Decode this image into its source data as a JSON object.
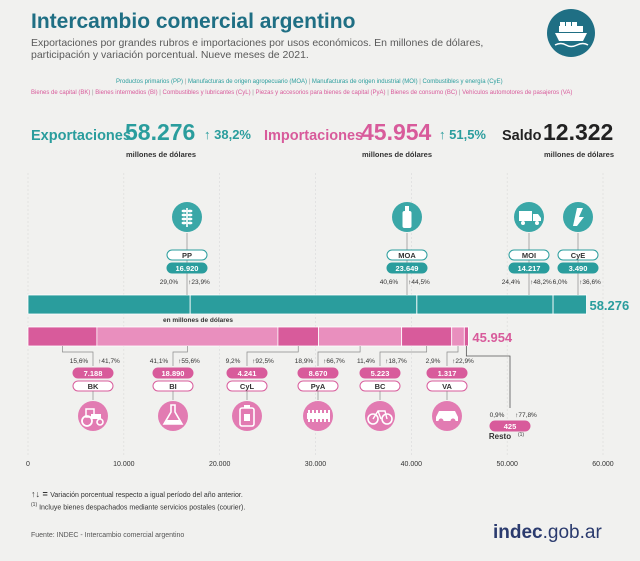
{
  "header": {
    "title": "Intercambio comercial argentino",
    "subtitle": "Exportaciones por grandes rubros e importaciones por usos económicos. En millones de dólares, participación y variación porcentual. Nueve meses de 2021."
  },
  "legend": {
    "exports": [
      "Productos primarios (PP)",
      "Manufacturas de origen agropecuario (MOA)",
      "Manufacturas de origen industrial (MOI)",
      "Combustibles y energía (CyE)"
    ],
    "imports": [
      "Bienes de capital (BK)",
      "Bienes intermedios (BI)",
      "Combustibles y lubricantes (CyL)",
      "Piezas y accesorios para bienes de capital (PyA)",
      "Bienes de consumo (BC)",
      "Vehículos automotores de pasajeros (VA)"
    ]
  },
  "kpis": {
    "exports": {
      "label": "Exportaciones",
      "value": "58.276",
      "pct": "38,2%",
      "unit": "millones de dólares"
    },
    "imports": {
      "label": "Importaciones",
      "value": "45.954",
      "pct": "51,5%",
      "unit": "millones de dólares"
    },
    "balance": {
      "label": "Saldo",
      "value": "12.322",
      "unit": "millones de dólares"
    }
  },
  "colors": {
    "export": "#2a9d9d",
    "import": "#d85b9b",
    "import_light": "#e98fbe",
    "title": "#1f6f84",
    "icon_circle_teal": "#3aa7a7",
    "icon_circle_pink": "#e27bb2"
  },
  "chart_data": {
    "type": "bar",
    "orientation": "horizontal-stacked",
    "unit_label": "en millones de dólares",
    "xlim": [
      0,
      60000
    ],
    "ticks": [
      "0",
      "10.000",
      "20.000",
      "30.000",
      "40.000",
      "50.000",
      "60.000"
    ],
    "exports_total": 58276,
    "exports_total_label": "58.276",
    "imports_total": 45954,
    "imports_total_label": "45.954",
    "series_exports": [
      {
        "code": "PP",
        "value": 16920,
        "value_label": "16.920",
        "share": "29,0%",
        "change": "23,9%",
        "icon": "wheat-icon"
      },
      {
        "code": "MOA",
        "value": 23649,
        "value_label": "23.649",
        "share": "40,6%",
        "change": "44,5%",
        "icon": "bottle-icon"
      },
      {
        "code": "MOI",
        "value": 14217,
        "value_label": "14.217",
        "share": "24,4%",
        "change": "48,2%",
        "icon": "truck-icon"
      },
      {
        "code": "CyE",
        "value": 3490,
        "value_label": "3.490",
        "share": "6,0%",
        "change": "36,6%",
        "icon": "fuel-icon"
      }
    ],
    "series_imports": [
      {
        "code": "BK",
        "value": 7188,
        "value_label": "7.188",
        "share": "15,6%",
        "change": "41,7%",
        "icon": "tractor-icon"
      },
      {
        "code": "BI",
        "value": 18890,
        "value_label": "18.890",
        "share": "41,1%",
        "change": "55,6%",
        "icon": "flask-icon"
      },
      {
        "code": "CyL",
        "value": 4241,
        "value_label": "4.241",
        "share": "9,2%",
        "change": "92,5%",
        "icon": "jerrycan-icon"
      },
      {
        "code": "PyA",
        "value": 8670,
        "value_label": "8.670",
        "share": "18,9%",
        "change": "66,7%",
        "icon": "part-icon"
      },
      {
        "code": "BC",
        "value": 5223,
        "value_label": "5.223",
        "share": "11,4%",
        "change": "18,7%",
        "icon": "bicycle-icon"
      },
      {
        "code": "VA",
        "value": 1317,
        "value_label": "1.317",
        "share": "2,9%",
        "change": "22,9%",
        "icon": "car-icon"
      },
      {
        "code": "Resto",
        "value": 425,
        "value_label": "425",
        "share": "0,9%",
        "change": "77,8%",
        "note": "(1)"
      }
    ]
  },
  "footnotes": {
    "arrow_note": "Variación porcentual respecto a igual período del año anterior.",
    "courier_note": "Incluye bienes despachados mediante servicios postales (courier).",
    "courier_mark": "(1)"
  },
  "footer": {
    "source": "Fuente: INDEC  - Intercambio comercial argentino",
    "brand_bold": "indec",
    "brand_rest": ".gob.ar"
  }
}
